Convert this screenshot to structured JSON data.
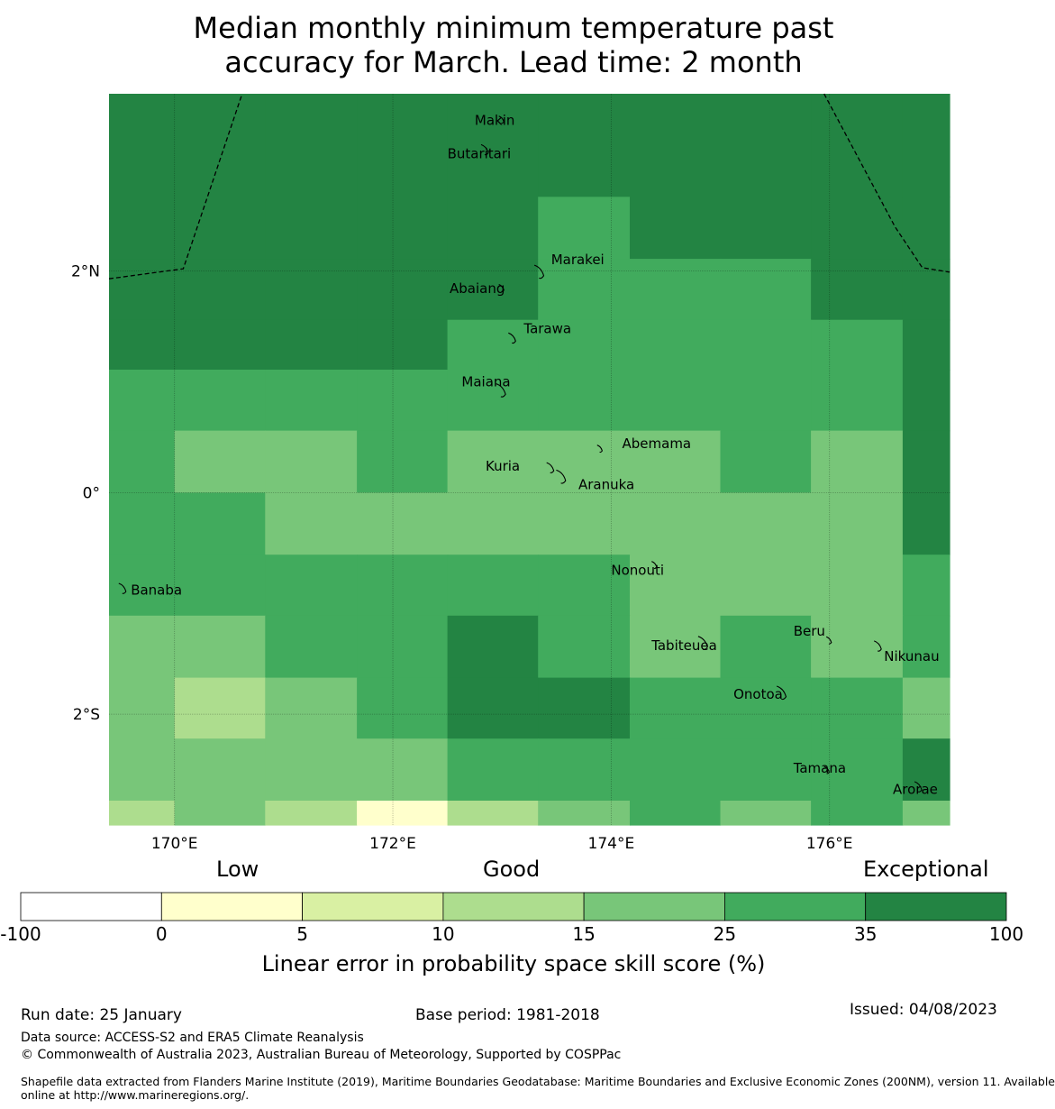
{
  "title": {
    "line1": "Median monthly minimum temperature past",
    "line2": "accuracy for March. Lead time: 2 month"
  },
  "map": {
    "lon_range": [
      169.4,
      177.1
    ],
    "lat_range": [
      -3.0,
      3.6
    ],
    "x_ticks": [
      {
        "lon": 170,
        "label": "170°E"
      },
      {
        "lon": 172,
        "label": "172°E"
      },
      {
        "lon": 174,
        "label": "174°E"
      },
      {
        "lon": 176,
        "label": "176°E"
      }
    ],
    "y_ticks": [
      {
        "lat": 2,
        "label": "2°N"
      },
      {
        "lat": 0,
        "label": "0°"
      },
      {
        "lat": -2,
        "label": "2°S"
      }
    ],
    "grid": {
      "lon_edges": [
        169.4,
        170.0,
        170.83,
        171.67,
        172.5,
        173.33,
        174.17,
        175.0,
        175.83,
        176.67,
        177.1
      ],
      "lat_edges": [
        3.6,
        2.67,
        2.11,
        1.56,
        1.11,
        0.56,
        0.0,
        -0.56,
        -1.11,
        -1.67,
        -2.22,
        -2.78,
        -3.0
      ],
      "categories": [
        [
          6,
          6,
          6,
          6,
          6,
          6,
          6,
          6,
          6,
          6
        ],
        [
          6,
          6,
          6,
          6,
          6,
          5,
          6,
          6,
          6,
          6
        ],
        [
          6,
          6,
          6,
          6,
          6,
          5,
          5,
          5,
          6,
          6
        ],
        [
          6,
          6,
          6,
          6,
          5,
          5,
          5,
          5,
          5,
          6
        ],
        [
          5,
          5,
          5,
          5,
          5,
          5,
          5,
          5,
          5,
          6
        ],
        [
          5,
          4,
          4,
          5,
          4,
          4,
          4,
          5,
          4,
          6
        ],
        [
          5,
          5,
          4,
          4,
          4,
          4,
          4,
          4,
          4,
          6
        ],
        [
          5,
          5,
          5,
          5,
          5,
          5,
          4,
          4,
          4,
          5
        ],
        [
          4,
          4,
          5,
          5,
          6,
          5,
          4,
          5,
          4,
          5
        ],
        [
          4,
          3,
          4,
          5,
          6,
          6,
          5,
          5,
          5,
          4
        ],
        [
          4,
          4,
          4,
          4,
          5,
          5,
          5,
          5,
          5,
          6
        ],
        [
          3,
          4,
          3,
          1,
          3,
          4,
          5,
          4,
          5,
          4
        ]
      ]
    },
    "eez_boundaries": [
      [
        [
          169.4,
          1.93
        ],
        [
          170.08,
          2.02
        ],
        [
          170.62,
          3.6
        ]
      ],
      [
        [
          175.95,
          3.6
        ],
        [
          176.6,
          2.4
        ],
        [
          176.85,
          2.03
        ],
        [
          177.1,
          1.99
        ]
      ]
    ],
    "islands": [
      {
        "name": "Makin",
        "lon": 173.0,
        "lat": 3.37,
        "label_lon": 172.75,
        "label_lat": 3.32,
        "anchor": "start"
      },
      {
        "name": "Butaritari",
        "lon": 172.85,
        "lat": 3.1,
        "label_lon": 172.5,
        "label_lat": 3.02,
        "anchor": "start"
      },
      {
        "name": "Marakei",
        "lon": 173.35,
        "lat": 2.0,
        "label_lon": 173.45,
        "label_lat": 2.06,
        "anchor": "start"
      },
      {
        "name": "Abaiang",
        "lon": 173.0,
        "lat": 1.85,
        "label_lon": 172.52,
        "label_lat": 1.8,
        "anchor": "start"
      },
      {
        "name": "Tarawa",
        "lon": 173.1,
        "lat": 1.4,
        "label_lon": 173.2,
        "label_lat": 1.44,
        "anchor": "start"
      },
      {
        "name": "Maiana",
        "lon": 173.0,
        "lat": 0.93,
        "label_lon": 172.63,
        "label_lat": 0.96,
        "anchor": "start"
      },
      {
        "name": "Abemama",
        "lon": 173.9,
        "lat": 0.4,
        "label_lon": 174.1,
        "label_lat": 0.4,
        "anchor": "start"
      },
      {
        "name": "Kuria",
        "lon": 173.45,
        "lat": 0.23,
        "label_lon": 172.85,
        "label_lat": 0.2,
        "anchor": "start"
      },
      {
        "name": "Aranuka",
        "lon": 173.55,
        "lat": 0.15,
        "label_lon": 173.7,
        "label_lat": 0.03,
        "anchor": "start"
      },
      {
        "name": "Nonouti",
        "lon": 174.4,
        "lat": -0.65,
        "label_lon": 174.0,
        "label_lat": -0.74,
        "anchor": "start"
      },
      {
        "name": "Banaba",
        "lon": 169.53,
        "lat": -0.86,
        "label_lon": 169.6,
        "label_lat": -0.92,
        "anchor": "start"
      },
      {
        "name": "Tabiteuea",
        "lon": 174.85,
        "lat": -1.35,
        "label_lon": 174.37,
        "label_lat": -1.42,
        "anchor": "start"
      },
      {
        "name": "Beru",
        "lon": 176.0,
        "lat": -1.33,
        "label_lon": 175.67,
        "label_lat": -1.29,
        "anchor": "start"
      },
      {
        "name": "Nikunau",
        "lon": 176.45,
        "lat": -1.38,
        "label_lon": 176.5,
        "label_lat": -1.52,
        "anchor": "start"
      },
      {
        "name": "Onotoa",
        "lon": 175.57,
        "lat": -1.8,
        "label_lon": 175.12,
        "label_lat": -1.86,
        "anchor": "start"
      },
      {
        "name": "Tamana",
        "lon": 175.98,
        "lat": -2.5,
        "label_lon": 175.67,
        "label_lat": -2.53,
        "anchor": "start"
      },
      {
        "name": "Arorae",
        "lon": 176.82,
        "lat": -2.65,
        "label_lon": 176.58,
        "label_lat": -2.72,
        "anchor": "start"
      }
    ]
  },
  "colorbar": {
    "label_low": "Low",
    "label_good": "Good",
    "label_exceptional": "Exceptional",
    "ticks": [
      "-100",
      "0",
      "5",
      "10",
      "15",
      "25",
      "35",
      "100"
    ],
    "colors": [
      "#ffffff",
      "#ffffcc",
      "#d9f0a3",
      "#addd8e",
      "#78c679",
      "#41ab5d",
      "#238443"
    ],
    "title": "Linear error in probability space skill score (%)"
  },
  "footer": {
    "run_date": "Run date: 25 January",
    "base_period": "Base period: 1981-2018",
    "issued": "Issued: 04/08/2023",
    "data_source": "Data source: ACCESS-S2 and ERA5 Climate Reanalysis",
    "copyright": "© Commonwealth of Australia 2023, Australian Bureau of Meteorology, Supported by COSPPac",
    "shapefile_line1": "Shapefile data extracted from Flanders Marine Institute (2019), Maritime Boundaries Geodatabase: Maritime Boundaries and Exclusive Economic Zones (200NM), version 11. Available",
    "shapefile_line2": "online at http://www.marineregions.org/."
  }
}
